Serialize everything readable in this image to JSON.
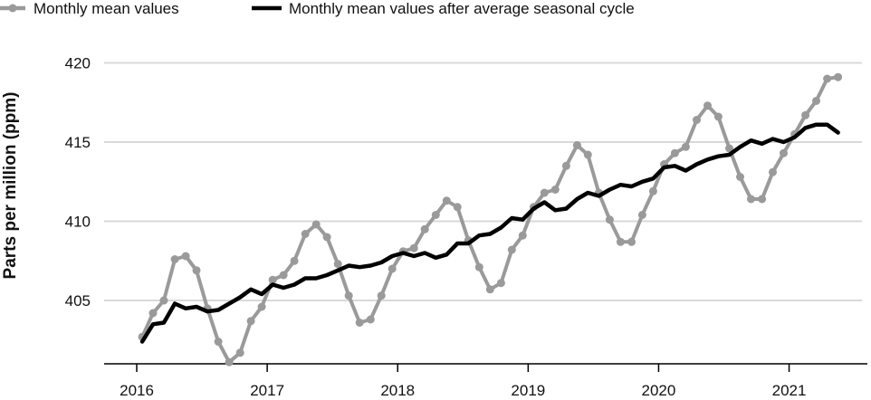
{
  "chart_data": {
    "type": "line",
    "title": "",
    "xlabel": "",
    "ylabel": "Parts per million (ppm)",
    "xlim": [
      2015.75,
      2021.6
    ],
    "ylim": [
      401,
      421
    ],
    "grid": {
      "x": false,
      "y": true
    },
    "legend_position": "top-left",
    "x_ticks": [
      2016,
      2017,
      2018,
      2019,
      2020,
      2021
    ],
    "x_tick_labels": [
      "2016",
      "2017",
      "2018",
      "2019",
      "2020",
      "2021"
    ],
    "y_ticks": [
      405,
      410,
      415,
      420
    ],
    "y_tick_labels": [
      "405",
      "410",
      "415",
      "420"
    ],
    "series": [
      {
        "name": "Monthly mean values",
        "color": "#9a9a9a",
        "markers": true,
        "x": [
          2016.042,
          2016.125,
          2016.208,
          2016.292,
          2016.375,
          2016.458,
          2016.542,
          2016.625,
          2016.708,
          2016.792,
          2016.875,
          2016.958,
          2017.042,
          2017.125,
          2017.208,
          2017.292,
          2017.375,
          2017.458,
          2017.542,
          2017.625,
          2017.708,
          2017.792,
          2017.875,
          2017.958,
          2018.042,
          2018.125,
          2018.208,
          2018.292,
          2018.375,
          2018.458,
          2018.542,
          2018.625,
          2018.708,
          2018.792,
          2018.875,
          2018.958,
          2019.042,
          2019.125,
          2019.208,
          2019.292,
          2019.375,
          2019.458,
          2019.542,
          2019.625,
          2019.708,
          2019.792,
          2019.875,
          2019.958,
          2020.042,
          2020.125,
          2020.208,
          2020.292,
          2020.375,
          2020.458,
          2020.542,
          2020.625,
          2020.708,
          2020.792,
          2020.875,
          2020.958,
          2021.042,
          2021.125,
          2021.208,
          2021.292,
          2021.375
        ],
        "y": [
          402.7,
          404.2,
          405.0,
          407.6,
          407.8,
          406.9,
          404.5,
          402.4,
          401.1,
          401.7,
          403.7,
          404.6,
          406.3,
          406.6,
          407.5,
          409.2,
          409.8,
          409.0,
          407.3,
          405.3,
          403.6,
          403.8,
          405.3,
          407.0,
          408.1,
          408.3,
          409.5,
          410.4,
          411.3,
          410.9,
          408.8,
          407.1,
          405.7,
          406.1,
          408.2,
          409.1,
          410.9,
          411.8,
          412.0,
          413.5,
          414.8,
          414.2,
          411.8,
          410.1,
          408.7,
          408.7,
          410.4,
          411.9,
          413.6,
          414.3,
          414.7,
          416.4,
          417.3,
          416.6,
          414.6,
          412.8,
          411.4,
          411.4,
          413.1,
          414.3,
          415.5,
          416.7,
          417.6,
          419.0,
          419.1
        ]
      },
      {
        "name": "Monthly mean values after average seasonal cycle",
        "color": "#000000",
        "markers": false,
        "x": [
          2016.042,
          2016.125,
          2016.208,
          2016.292,
          2016.375,
          2016.458,
          2016.542,
          2016.625,
          2016.708,
          2016.792,
          2016.875,
          2016.958,
          2017.042,
          2017.125,
          2017.208,
          2017.292,
          2017.375,
          2017.458,
          2017.542,
          2017.625,
          2017.708,
          2017.792,
          2017.875,
          2017.958,
          2018.042,
          2018.125,
          2018.208,
          2018.292,
          2018.375,
          2018.458,
          2018.542,
          2018.625,
          2018.708,
          2018.792,
          2018.875,
          2018.958,
          2019.042,
          2019.125,
          2019.208,
          2019.292,
          2019.375,
          2019.458,
          2019.542,
          2019.625,
          2019.708,
          2019.792,
          2019.875,
          2019.958,
          2020.042,
          2020.125,
          2020.208,
          2020.292,
          2020.375,
          2020.458,
          2020.542,
          2020.625,
          2020.708,
          2020.792,
          2020.875,
          2020.958,
          2021.042,
          2021.125,
          2021.208,
          2021.292,
          2021.375
        ],
        "y": [
          402.4,
          403.5,
          403.6,
          404.8,
          404.5,
          404.6,
          404.3,
          404.4,
          404.8,
          405.2,
          405.7,
          405.4,
          406.0,
          405.8,
          406.0,
          406.4,
          406.4,
          406.6,
          406.9,
          407.2,
          407.1,
          407.2,
          407.4,
          407.8,
          408.0,
          407.8,
          408.0,
          407.7,
          407.9,
          408.6,
          408.6,
          409.1,
          409.2,
          409.6,
          410.2,
          410.1,
          410.8,
          411.2,
          410.7,
          410.8,
          411.4,
          411.8,
          411.6,
          412.0,
          412.3,
          412.2,
          412.5,
          412.7,
          413.4,
          413.5,
          413.2,
          413.6,
          413.9,
          414.1,
          414.2,
          414.7,
          415.1,
          414.9,
          415.2,
          415.0,
          415.3,
          415.9,
          416.1,
          416.1,
          415.6
        ]
      }
    ]
  }
}
